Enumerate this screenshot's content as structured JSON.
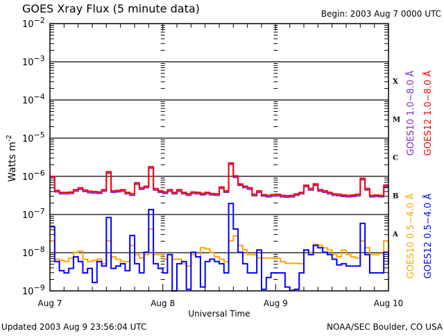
{
  "header": {
    "title": "GOES Xray Flux (5 minute data)",
    "begin": "Begin:  2003 Aug 7 0000 UTC"
  },
  "footer": {
    "updated": "Updated 2003 Aug  9 23:56:04 UTC",
    "source": "NOAA/SEC Boulder, CO USA"
  },
  "chart_data": {
    "type": "line",
    "title": "GOES Xray Flux (5 minute data)",
    "xlabel": "Universal Time",
    "ylabel": "Watts m",
    "ylabel_sup": "-2",
    "yscale": "log",
    "ylim_log10": [
      -9,
      -2
    ],
    "xlim_hours": [
      0,
      72
    ],
    "x_unit": "hours since 2003 Aug 7 0000 UTC",
    "y_unit": "log10(W m^-2)",
    "x_ticks": [
      {
        "hour": 0,
        "label": "Aug 7"
      },
      {
        "hour": 24,
        "label": "Aug 8"
      },
      {
        "hour": 48,
        "label": "Aug 9"
      },
      {
        "hour": 72,
        "label": "Aug 10"
      }
    ],
    "y_ticks": [
      {
        "exp": -2,
        "base": "10",
        "sup": "−2"
      },
      {
        "exp": -3,
        "base": "10",
        "sup": "−3"
      },
      {
        "exp": -4,
        "base": "10",
        "sup": "−4"
      },
      {
        "exp": -5,
        "base": "10",
        "sup": "−5"
      },
      {
        "exp": -6,
        "base": "10",
        "sup": "−6"
      },
      {
        "exp": -7,
        "base": "10",
        "sup": "−7"
      },
      {
        "exp": -8,
        "base": "10",
        "sup": "−8"
      },
      {
        "exp": -9,
        "base": "10",
        "sup": "−9"
      }
    ],
    "flare_classes": [
      {
        "label": "X",
        "exp": -4
      },
      {
        "label": "M",
        "exp": -5
      },
      {
        "label": "C",
        "exp": -6
      },
      {
        "label": "B",
        "exp": -7
      },
      {
        "label": "A",
        "exp": -8
      }
    ],
    "grid": "horizontal at each decade",
    "legend_placement": "right, vertical",
    "series": [
      {
        "name": "GOES10 1.0−8.0 Å",
        "color": "#7b2fbe",
        "values": [
          -6.02,
          -6.39,
          -6.44,
          -6.44,
          -6.43,
          -6.37,
          -6.32,
          -6.38,
          -6.41,
          -6.42,
          -6.43,
          -6.37,
          -5.9,
          -6.4,
          -6.39,
          -6.37,
          -6.44,
          -6.48,
          -6.19,
          -6.32,
          -6.28,
          -5.77,
          -6.34,
          -6.4,
          -6.43,
          -6.37,
          -6.44,
          -6.37,
          -6.44,
          -6.48,
          -6.43,
          -6.44,
          -6.47,
          -6.44,
          -6.47,
          -6.48,
          -6.3,
          -6.4,
          -5.67,
          -6.01,
          -6.22,
          -6.28,
          -6.32,
          -6.49,
          -6.4,
          -6.5,
          -6.52,
          -6.5,
          -6.49,
          -6.52,
          -6.53,
          -6.52,
          -6.48,
          -6.44,
          -6.25,
          -6.34,
          -6.22,
          -6.37,
          -6.4,
          -6.44,
          -6.48,
          -6.49,
          -6.51,
          -6.52,
          -6.51,
          -6.49,
          -6.07,
          -6.34,
          -6.52,
          -6.51,
          -6.52,
          -6.25,
          -6.25
        ]
      },
      {
        "name": "GOES12 1.0−8.0 Å",
        "color": "#ff0000",
        "values": [
          -6.0,
          -6.37,
          -6.42,
          -6.42,
          -6.41,
          -6.35,
          -6.3,
          -6.36,
          -6.39,
          -6.4,
          -6.41,
          -6.35,
          -5.88,
          -6.38,
          -6.37,
          -6.35,
          -6.42,
          -6.46,
          -6.17,
          -6.3,
          -6.26,
          -5.75,
          -6.32,
          -6.38,
          -6.41,
          -6.35,
          -6.42,
          -6.35,
          -6.42,
          -6.46,
          -6.41,
          -6.42,
          -6.45,
          -6.42,
          -6.45,
          -6.46,
          -6.28,
          -6.38,
          -5.65,
          -5.99,
          -6.2,
          -6.26,
          -6.3,
          -6.47,
          -6.38,
          -6.48,
          -6.5,
          -6.48,
          -6.47,
          -6.5,
          -6.51,
          -6.5,
          -6.46,
          -6.42,
          -6.23,
          -6.32,
          -6.2,
          -6.35,
          -6.38,
          -6.42,
          -6.46,
          -6.47,
          -6.49,
          -6.5,
          -6.49,
          -6.47,
          -6.05,
          -6.32,
          -6.5,
          -6.49,
          -6.5,
          -6.23,
          -6.23
        ]
      },
      {
        "name": "GOES10 0.5−4.0 Å",
        "color": "#ffa500",
        "values": [
          -7.69,
          -8.17,
          -8.2,
          -8.23,
          -8.14,
          -7.99,
          -7.96,
          -8.17,
          -8.23,
          -8.2,
          -8.17,
          -8.29,
          -7.69,
          -8.11,
          -8.17,
          -8.23,
          -8.23,
          -7.81,
          -8.05,
          -8.14,
          -8.05,
          -7.38,
          -8.05,
          -8.05,
          -8.17,
          -8.05,
          -8.17,
          -8.17,
          -8.29,
          -8.35,
          -8.05,
          -8.11,
          -7.87,
          -7.9,
          -7.99,
          -8.11,
          -8.17,
          -8.23,
          -7.69,
          -7.56,
          -7.81,
          -7.93,
          -8.05,
          -8.05,
          -8.14,
          -8.14,
          -8.14,
          -8.14,
          -8.14,
          -8.23,
          -8.28,
          -8.28,
          -8.28,
          -8.29,
          -7.93,
          -7.99,
          -7.78,
          -7.81,
          -7.87,
          -7.93,
          -8.05,
          -8.11,
          -7.93,
          -8.05,
          -8.11,
          -8.14,
          -7.69,
          -7.87,
          -8.05,
          -8.05,
          -8.02,
          -7.69,
          -8.14
        ]
      },
      {
        "name": "GOES12 0.5−4.0 Å",
        "color": "#0000ff",
        "values": [
          -7.32,
          -8.23,
          -8.47,
          -8.53,
          -8.41,
          -8.11,
          -8.23,
          -8.53,
          -8.41,
          -8.78,
          -8.23,
          -8.35,
          -7.08,
          -8.41,
          -8.35,
          -8.29,
          -8.47,
          -7.55,
          -8.29,
          -8.53,
          -7.99,
          -6.87,
          -8.29,
          -8.41,
          -8.53,
          -8.05,
          -9.0,
          -8.29,
          -8.23,
          -8.96,
          -7.99,
          -8.11,
          -8.9,
          -8.23,
          -8.17,
          -8.23,
          -8.29,
          -8.53,
          -6.71,
          -7.38,
          -7.99,
          -8.29,
          -8.53,
          -8.53,
          -7.93,
          -8.96,
          -8.65,
          -8.53,
          -8.53,
          -8.53,
          -8.9,
          -8.99,
          -8.96,
          -8.53,
          -7.93,
          -8.05,
          -7.81,
          -7.87,
          -7.99,
          -8.05,
          -8.17,
          -8.32,
          -8.29,
          -8.35,
          -8.35,
          -8.35,
          -7.23,
          -8.05,
          -8.53,
          -8.53,
          -8.53,
          -7.99,
          -8.29
        ]
      }
    ]
  }
}
